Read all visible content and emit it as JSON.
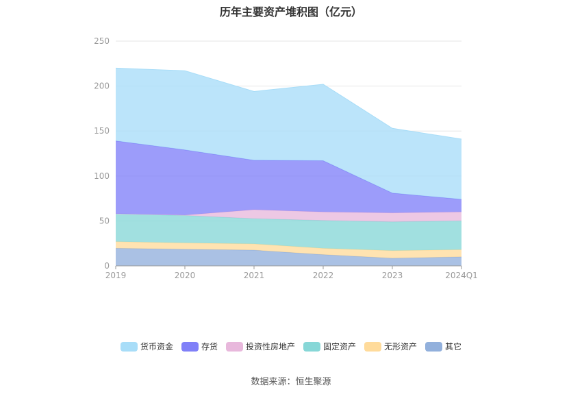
{
  "chart_data": {
    "type": "area",
    "stacked": true,
    "title": "历年主要资产堆积图（亿元）",
    "categories": [
      "2019",
      "2020",
      "2021",
      "2022",
      "2023",
      "2024Q1"
    ],
    "ylim": [
      0,
      250
    ],
    "yticks": [
      0,
      50,
      100,
      150,
      200,
      250
    ],
    "grid": true,
    "legend_position": "bottom",
    "series": [
      {
        "name": "其它",
        "color": "#92b0dc",
        "values": [
          19.5,
          18.5,
          17.5,
          12.5,
          8.5,
          10.0
        ]
      },
      {
        "name": "无形资产",
        "color": "#ffdb9b",
        "values": [
          7.5,
          7.0,
          7.0,
          7.0,
          8.5,
          8.0
        ]
      },
      {
        "name": "固定资产",
        "color": "#87d7d7",
        "values": [
          31.0,
          30.5,
          28.0,
          31.0,
          32.0,
          32.0
        ]
      },
      {
        "name": "投资性房地产",
        "color": "#e8b8dc",
        "values": [
          0.0,
          0.5,
          10.0,
          9.5,
          10.0,
          10.0
        ]
      },
      {
        "name": "存货",
        "color": "#8080f8",
        "values": [
          81.0,
          72.5,
          55.0,
          57.0,
          22.0,
          14.0
        ]
      },
      {
        "name": "货币资金",
        "color": "#a8ddf8",
        "values": [
          81.0,
          88.0,
          76.5,
          85.0,
          72.0,
          67.0
        ]
      }
    ]
  },
  "legend_order": [
    "货币资金",
    "存货",
    "投资性房地产",
    "固定资产",
    "无形资产",
    "其它"
  ],
  "source_text": "数据来源：恒生聚源"
}
